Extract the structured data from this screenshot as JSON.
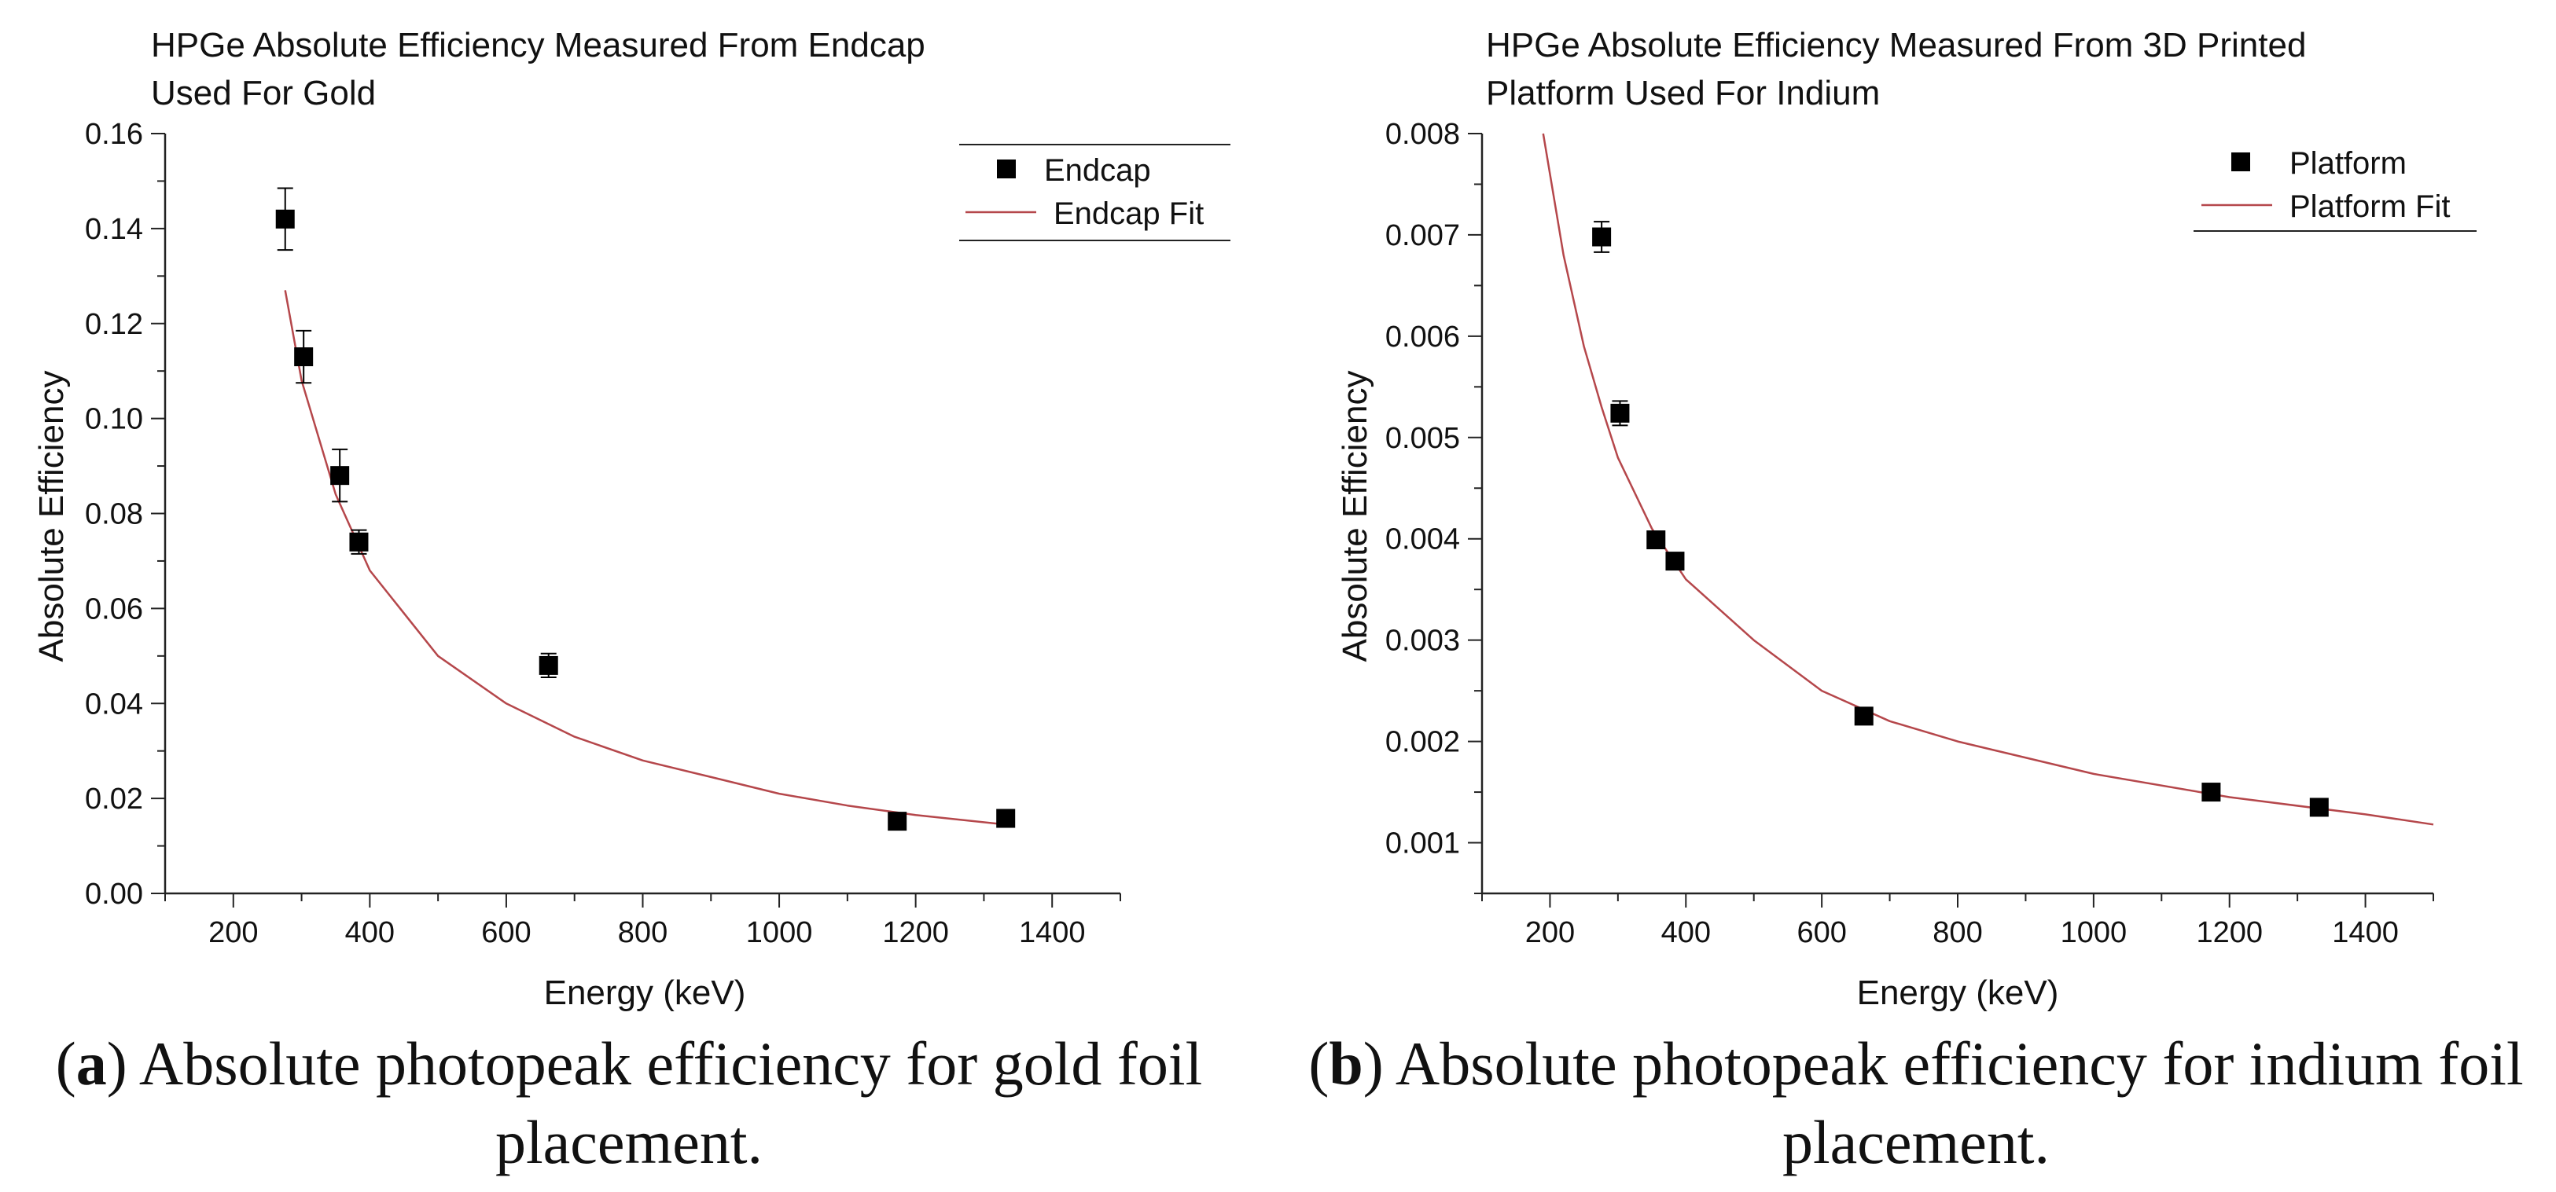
{
  "chart_data": [
    {
      "type": "scatter",
      "panel_label": "a",
      "title_lines": [
        "HPGe Absolute Efficiency Measured From Endcap",
        "Used For Gold"
      ],
      "xlabel": "Energy (keV)",
      "ylabel": "Absolute Efficiency",
      "xlim": [
        100,
        1500
      ],
      "ylim": [
        0,
        0.16
      ],
      "xticks": [
        200,
        400,
        600,
        800,
        1000,
        1200,
        1400
      ],
      "xtick_labels": [
        "200",
        "400",
        "600",
        "800",
        "1000",
        "1200",
        "1400"
      ],
      "yticks": [
        0,
        0.02,
        0.04,
        0.06,
        0.08,
        0.1,
        0.12,
        0.14,
        0.16
      ],
      "ytick_labels": [
        "0.00",
        "0.02",
        "0.04",
        "0.06",
        "0.08",
        "0.10",
        "0.12",
        "0.14",
        "0.16"
      ],
      "legend": {
        "position": "top-right",
        "entries": [
          "Endcap",
          "Endcap Fit"
        ]
      },
      "series": [
        {
          "name": "Endcap",
          "kind": "points",
          "x": [
            276,
            303,
            356,
            384,
            662,
            1173,
            1332
          ],
          "y": [
            0.142,
            0.113,
            0.088,
            0.074,
            0.048,
            0.0152,
            0.0158
          ],
          "err": [
            0.0065,
            0.0055,
            0.0055,
            0.0025,
            0.0025,
            0.0005,
            0.0005
          ]
        },
        {
          "name": "Endcap Fit",
          "kind": "fit",
          "x": [
            276,
            300,
            350,
            400,
            500,
            600,
            700,
            800,
            900,
            1000,
            1100,
            1200,
            1332
          ],
          "y": [
            0.127,
            0.108,
            0.084,
            0.068,
            0.05,
            0.04,
            0.033,
            0.028,
            0.0245,
            0.021,
            0.0185,
            0.0165,
            0.0145
          ]
        }
      ],
      "caption": "(a) Absolute photopeak efficiency for gold foil placement.",
      "caption_lines": [
        "Absolute photopeak efficiency for gold foil",
        "placement."
      ]
    },
    {
      "type": "scatter",
      "panel_label": "b",
      "title_lines": [
        "HPGe Absolute Efficiency Measured From 3D Printed",
        "Platform Used For Indium"
      ],
      "xlabel": "Energy (keV)",
      "ylabel": "Absolute Efficiency",
      "xlim": [
        100,
        1500
      ],
      "ylim": [
        0.0005,
        0.008
      ],
      "xticks": [
        200,
        400,
        600,
        800,
        1000,
        1200,
        1400
      ],
      "xtick_labels": [
        "200",
        "400",
        "600",
        "800",
        "1000",
        "1200",
        "1400"
      ],
      "yticks": [
        0.001,
        0.002,
        0.003,
        0.004,
        0.005,
        0.006,
        0.007,
        0.008
      ],
      "ytick_labels": [
        "0.001",
        "0.002",
        "0.003",
        "0.004",
        "0.005",
        "0.006",
        "0.007",
        "0.008"
      ],
      "legend": {
        "position": "top-right",
        "entries": [
          "Platform",
          "Platform Fit"
        ]
      },
      "series": [
        {
          "name": "Platform",
          "kind": "points",
          "x": [
            276,
            303,
            356,
            384,
            662,
            1173,
            1332
          ],
          "y": [
            0.00698,
            0.00524,
            0.00399,
            0.00378,
            0.00225,
            0.0015,
            0.00135
          ],
          "err": [
            0.00015,
            0.00012,
            3e-05,
            3e-05,
            3e-05,
            3e-05,
            3e-05
          ]
        },
        {
          "name": "Platform Fit",
          "kind": "fit",
          "x": [
            190,
            220,
            250,
            276,
            300,
            350,
            400,
            500,
            600,
            700,
            800,
            1000,
            1200,
            1400,
            1500
          ],
          "y": [
            0.008,
            0.0068,
            0.0059,
            0.0053,
            0.0048,
            0.0041,
            0.0036,
            0.003,
            0.0025,
            0.0022,
            0.002,
            0.00168,
            0.00145,
            0.00128,
            0.00118
          ]
        }
      ],
      "caption": "(b) Absolute photopeak efficiency for indium foil placement.",
      "caption_lines": [
        "Absolute photopeak efficiency for indium foil",
        "placement."
      ]
    }
  ],
  "colors": {
    "fit_line": "#b5474b",
    "marker": "#000000",
    "axis": "#222222"
  }
}
